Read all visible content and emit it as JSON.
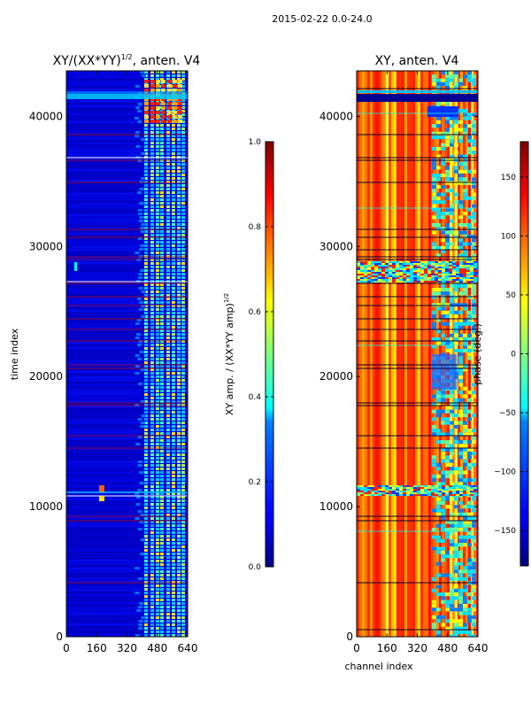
{
  "suptitle": "2015-02-22 0.0-24.0",
  "chart_data": [
    {
      "type": "heatmap",
      "title_main": "XY/(XX*YY)",
      "title_sup": "1/2",
      "title_tail": ", anten. V4",
      "xlabel": "",
      "ylabel": "time index",
      "xlim": [
        0,
        640
      ],
      "ylim": [
        0,
        43500
      ],
      "xticks": [
        "0",
        "160",
        "320",
        "480",
        "640"
      ],
      "xtick_values": [
        0,
        160,
        320,
        480,
        640
      ],
      "yticks": [
        "0",
        "10000",
        "20000",
        "30000",
        "40000"
      ],
      "ytick_values": [
        0,
        10000,
        20000,
        30000,
        40000
      ],
      "colorbar": {
        "label": "XY amp. / (XX*YY amp)",
        "label_sup": "1/2",
        "range": [
          0.0,
          1.0
        ],
        "ticks": [
          "0.0",
          "0.2",
          "0.4",
          "0.6",
          "0.8",
          "1.0"
        ],
        "tick_values": [
          0.0,
          0.2,
          0.4,
          0.6,
          0.8,
          1.0
        ]
      }
    },
    {
      "type": "heatmap",
      "title_main": "XY, anten. V4",
      "xlabel": "channel index",
      "ylabel": "",
      "xlim": [
        0,
        640
      ],
      "ylim": [
        0,
        43500
      ],
      "xticks": [
        "0",
        "160",
        "320",
        "480",
        "640"
      ],
      "xtick_values": [
        0,
        160,
        320,
        480,
        640
      ],
      "yticks": [
        "0",
        "10000",
        "20000",
        "30000",
        "40000"
      ],
      "ytick_values": [
        0,
        10000,
        20000,
        30000,
        40000
      ],
      "colorbar": {
        "label": "phase (deg.)",
        "range": [
          -180,
          180
        ],
        "ticks": [
          "−150",
          "−100",
          "−50",
          "0",
          "50",
          "100",
          "150"
        ],
        "tick_values": [
          -150,
          -100,
          -50,
          0,
          50,
          100,
          150
        ]
      }
    }
  ],
  "colors": {
    "jet_dark_blue": "#00007f",
    "jet_blue": "#0000ff",
    "jet_cyan": "#00ffff",
    "jet_yellow": "#ffff00",
    "jet_red": "#ff0000",
    "jet_dark_red": "#7f0000"
  }
}
